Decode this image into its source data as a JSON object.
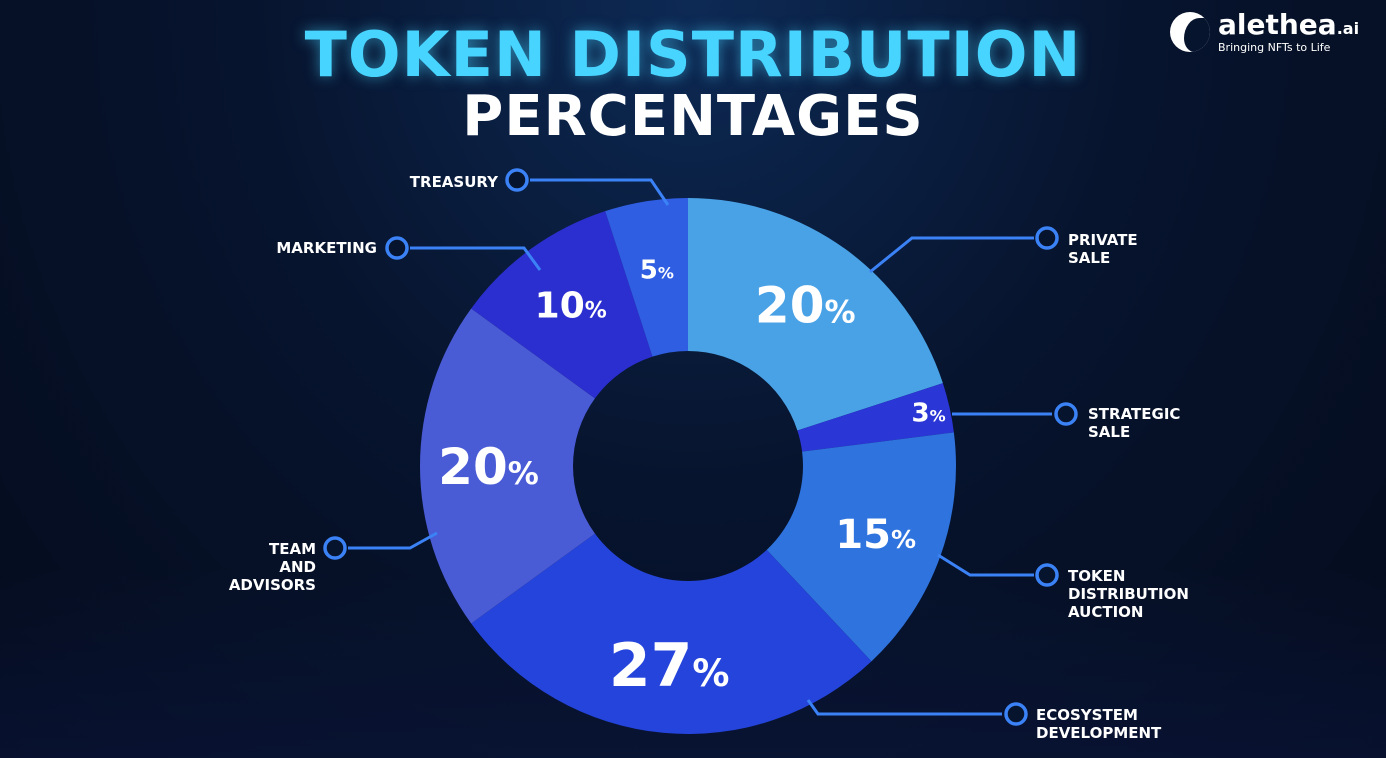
{
  "header": {
    "title_line1": "TOKEN DISTRIBUTION",
    "title_line2": "PERCENTAGES"
  },
  "logo": {
    "name": "alethea",
    "name_suffix": ".ai",
    "tagline": "Bringing NFTs to Life",
    "icon": "alethea-head-icon"
  },
  "colors": {
    "title_accent": "#47d4ff",
    "leader_line": "#3b82f6"
  },
  "chart_data": {
    "type": "pie",
    "title": "",
    "donut": true,
    "slices": [
      {
        "label": [
          "PRIVATE",
          "SALE"
        ],
        "value": 20,
        "value_label": "20",
        "color": "#4aa2e6"
      },
      {
        "label": [
          "STRATEGIC",
          "SALE"
        ],
        "value": 3,
        "value_label": "3",
        "color": "#2a36d6"
      },
      {
        "label": [
          "TOKEN",
          "DISTRIBUTION",
          "AUCTION"
        ],
        "value": 15,
        "value_label": "15",
        "color": "#2e73de"
      },
      {
        "label": [
          "ECOSYSTEM",
          "DEVELOPMENT"
        ],
        "value": 27,
        "value_label": "27",
        "color": "#2544db"
      },
      {
        "label": [
          "TEAM",
          "AND",
          "ADVISORS"
        ],
        "value": 20,
        "value_label": "20",
        "color": "#4a5bd6"
      },
      {
        "label": [
          "MARKETING"
        ],
        "value": 10,
        "value_label": "10",
        "color": "#2c2fcf"
      },
      {
        "label": [
          "TREASURY"
        ],
        "value": 5,
        "value_label": "5",
        "color": "#2f5ee3"
      }
    ],
    "percent_sign": "%"
  }
}
